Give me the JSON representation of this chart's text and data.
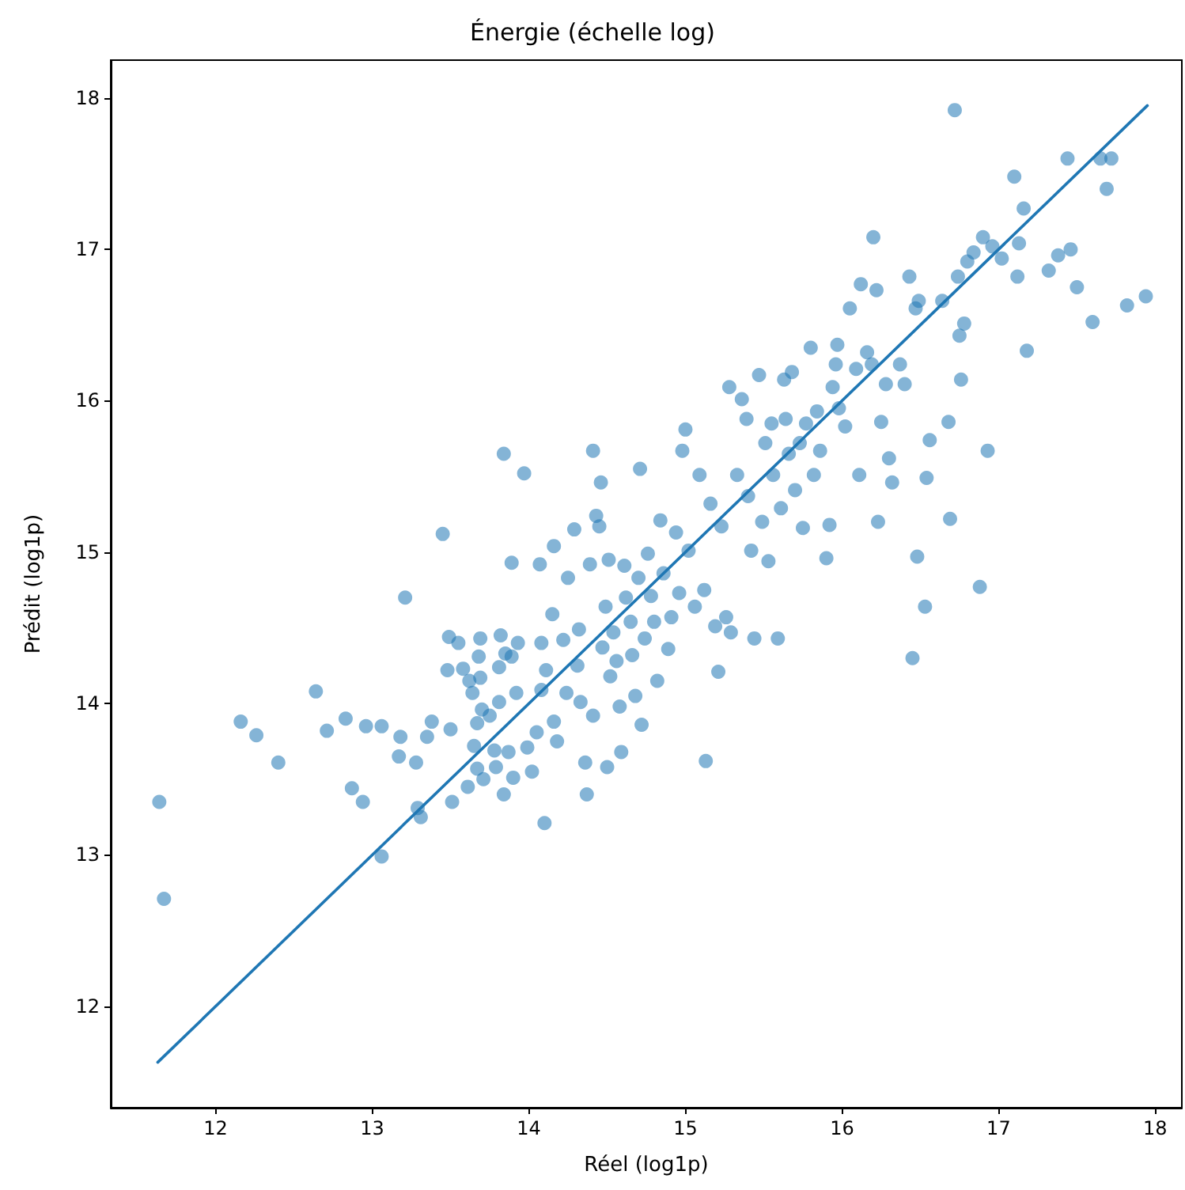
{
  "chart_data": {
    "type": "scatter",
    "title": "Énergie (échelle log)",
    "xlabel": "Réel (log1p)",
    "ylabel": "Prédit (log1p)",
    "xlim": [
      11.33,
      18.17
    ],
    "ylim": [
      11.33,
      18.25
    ],
    "xticks": [
      12,
      13,
      14,
      15,
      16,
      17,
      18
    ],
    "yticks": [
      12,
      13,
      14,
      15,
      16,
      17,
      18
    ],
    "grid": false,
    "series": [
      {
        "color": "#1f77b4",
        "marker": "circle",
        "x": [
          11.64,
          11.67,
          12.16,
          12.26,
          12.4,
          12.64,
          12.71,
          12.83,
          12.87,
          12.94,
          12.96,
          13.06,
          13.06,
          13.21,
          13.18,
          13.17,
          13.29,
          13.31,
          13.28,
          13.35,
          13.38,
          13.45,
          13.48,
          13.5,
          13.51,
          13.49,
          13.55,
          13.58,
          13.61,
          13.62,
          13.64,
          13.65,
          13.67,
          13.67,
          13.71,
          13.68,
          13.69,
          13.69,
          13.7,
          13.75,
          13.78,
          13.79,
          13.81,
          13.81,
          13.82,
          13.84,
          13.84,
          13.85,
          13.87,
          13.89,
          13.89,
          13.9,
          13.92,
          13.93,
          13.97,
          13.99,
          14.02,
          14.05,
          14.07,
          14.08,
          14.08,
          14.1,
          14.11,
          14.15,
          14.16,
          14.18,
          14.16,
          14.22,
          14.24,
          14.25,
          14.29,
          14.32,
          14.31,
          14.33,
          14.36,
          14.37,
          14.39,
          14.41,
          14.41,
          14.43,
          14.45,
          14.46,
          14.47,
          14.49,
          14.51,
          14.52,
          14.5,
          14.54,
          14.56,
          14.58,
          14.59,
          14.61,
          14.62,
          14.65,
          14.66,
          14.68,
          14.7,
          14.71,
          14.72,
          14.74,
          14.76,
          14.78,
          14.8,
          14.82,
          14.84,
          14.86,
          14.89,
          14.91,
          14.94,
          14.96,
          14.98,
          15.0,
          15.02,
          15.06,
          15.09,
          15.12,
          15.13,
          15.16,
          15.19,
          15.21,
          15.23,
          15.26,
          15.28,
          15.29,
          15.33,
          15.36,
          15.39,
          15.4,
          15.42,
          15.44,
          15.47,
          15.49,
          15.51,
          15.53,
          15.55,
          15.56,
          15.59,
          15.61,
          15.63,
          15.64,
          15.66,
          15.68,
          15.7,
          15.73,
          15.75,
          15.77,
          15.8,
          15.82,
          15.84,
          15.86,
          15.9,
          15.92,
          15.94,
          15.96,
          15.97,
          15.98,
          16.02,
          16.05,
          16.09,
          16.11,
          16.12,
          16.16,
          16.19,
          16.2,
          16.22,
          16.23,
          16.25,
          16.28,
          16.3,
          16.32,
          16.37,
          16.4,
          16.43,
          16.45,
          16.47,
          16.48,
          16.49,
          16.53,
          16.54,
          16.56,
          16.64,
          16.68,
          16.69,
          16.72,
          16.74,
          16.75,
          16.76,
          16.78,
          16.8,
          16.84,
          16.88,
          16.9,
          16.93,
          16.96,
          17.02,
          17.1,
          17.12,
          17.13,
          17.16,
          17.18,
          17.32,
          17.38,
          17.44,
          17.46,
          17.5,
          17.6,
          17.65,
          17.69,
          17.72,
          17.82,
          17.94
        ],
        "values": [
          13.35,
          12.71,
          13.88,
          13.79,
          13.61,
          14.08,
          13.82,
          13.9,
          13.44,
          13.35,
          13.85,
          13.85,
          12.99,
          14.7,
          13.78,
          13.65,
          13.31,
          13.25,
          13.61,
          13.78,
          13.88,
          15.12,
          14.22,
          13.83,
          13.35,
          14.44,
          14.4,
          14.23,
          13.45,
          14.15,
          14.07,
          13.72,
          13.87,
          13.57,
          13.5,
          14.31,
          14.17,
          14.43,
          13.96,
          13.92,
          13.69,
          13.58,
          14.01,
          14.24,
          14.45,
          15.65,
          13.4,
          14.33,
          13.68,
          14.93,
          14.31,
          13.51,
          14.07,
          14.4,
          15.52,
          13.71,
          13.55,
          13.81,
          14.92,
          14.4,
          14.09,
          13.21,
          14.22,
          14.59,
          13.88,
          13.75,
          15.04,
          14.42,
          14.07,
          14.83,
          15.15,
          14.49,
          14.25,
          14.01,
          13.61,
          13.4,
          14.92,
          15.67,
          13.92,
          15.24,
          15.17,
          15.46,
          14.37,
          14.64,
          14.95,
          14.18,
          13.58,
          14.47,
          14.28,
          13.98,
          13.68,
          14.91,
          14.7,
          14.54,
          14.32,
          14.05,
          14.83,
          15.55,
          13.86,
          14.43,
          14.99,
          14.71,
          14.54,
          14.15,
          15.21,
          14.86,
          14.36,
          14.57,
          15.13,
          14.73,
          15.67,
          15.81,
          15.01,
          14.64,
          15.51,
          14.75,
          13.62,
          15.32,
          14.51,
          14.21,
          15.17,
          14.57,
          16.09,
          14.47,
          15.51,
          16.01,
          15.88,
          15.37,
          15.01,
          14.43,
          16.17,
          15.2,
          15.72,
          14.94,
          15.85,
          15.51,
          14.43,
          15.29,
          16.14,
          15.88,
          15.65,
          16.19,
          15.41,
          15.72,
          15.16,
          15.85,
          16.35,
          15.51,
          15.93,
          15.67,
          14.96,
          15.18,
          16.09,
          16.24,
          16.37,
          15.95,
          15.83,
          16.61,
          16.21,
          15.51,
          16.77,
          16.32,
          16.24,
          17.08,
          16.73,
          15.2,
          15.86,
          16.11,
          15.62,
          15.46,
          16.24,
          16.11,
          16.82,
          14.3,
          16.61,
          14.97,
          16.66,
          14.64,
          15.49,
          15.74,
          16.66,
          15.86,
          15.22,
          17.92,
          16.82,
          16.43,
          16.14,
          16.51,
          16.92,
          16.98,
          14.77,
          17.08,
          15.67,
          17.02,
          16.94,
          17.48,
          16.82,
          17.04,
          17.27,
          16.33,
          16.86,
          16.96,
          17.6,
          17.0,
          16.75,
          16.52,
          17.6,
          17.4,
          17.6,
          16.63,
          16.69
        ]
      },
      {
        "type": "line",
        "color": "#1f77b4",
        "marker": "none",
        "line_style": "solid",
        "x": [
          11.63,
          17.95
        ],
        "values": [
          11.63,
          17.95
        ]
      }
    ]
  }
}
